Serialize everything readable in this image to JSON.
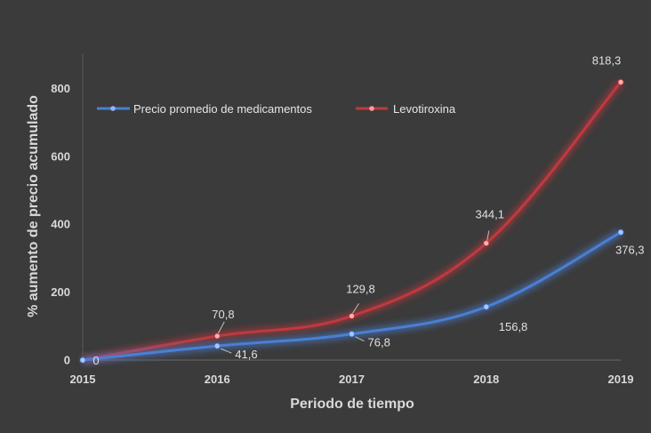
{
  "chart_data": {
    "type": "line",
    "title": "",
    "xlabel": "Periodo de tiempo",
    "ylabel": "% aumento de precio acumulado",
    "categories": [
      "2015",
      "2016",
      "2017",
      "2018",
      "2019"
    ],
    "ylim": [
      0,
      900
    ],
    "yticks": [
      "0",
      "200",
      "400",
      "600",
      "800"
    ],
    "grid": false,
    "legend_position": "top-left",
    "series": [
      {
        "name": "Precio promedio de medicamentos",
        "color": "#4a7fd4",
        "values": [
          0,
          41.6,
          76.8,
          156.8,
          376.3
        ],
        "labels": [
          "0",
          "41,6",
          "76,8",
          "156,8",
          "376,3"
        ]
      },
      {
        "name": "Levotiroxina",
        "color": "#c0393e",
        "values": [
          0,
          70.8,
          129.8,
          344.1,
          818.3
        ],
        "labels": [
          "",
          "70,8",
          "129,8",
          "344,1",
          "818,3"
        ]
      }
    ]
  }
}
